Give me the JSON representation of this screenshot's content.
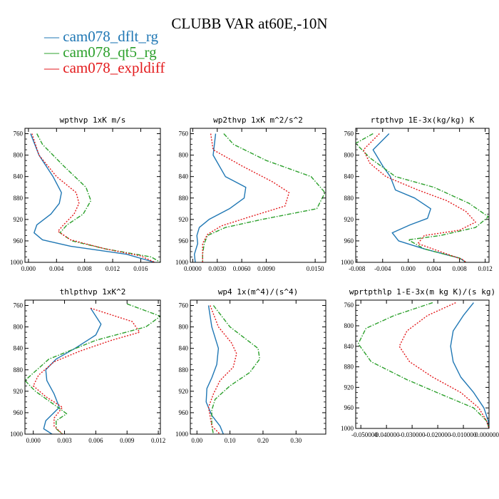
{
  "title": "CLUBB VAR at60E,-10N",
  "legend": [
    {
      "label": "cam078_dflt_rg",
      "color": "#1f77b4",
      "dash": "solid"
    },
    {
      "label": "cam078_qt5_rg",
      "color": "#2ca02c",
      "dash": "dashdot"
    },
    {
      "label": "cam078_expldiff",
      "color": "#e31a1c",
      "dash": "dotted"
    }
  ],
  "chart_data": [
    {
      "type": "line",
      "title": "wpthvp  1xK m/s",
      "xlim": [
        -0.0005,
        0.0188
      ],
      "ylim": [
        1000,
        750
      ],
      "xticks": [
        0.0,
        0.004,
        0.008,
        0.012,
        0.016
      ],
      "xtick_labels": [
        "0.000",
        "0.004",
        "0.008",
        "0.012",
        "0.016"
      ],
      "yticks": [
        760,
        800,
        840,
        880,
        920,
        960,
        1000
      ],
      "series": [
        {
          "name": "cam078_dflt_rg",
          "points": [
            [
              0.0003,
              760
            ],
            [
              0.0015,
              800
            ],
            [
              0.0035,
              840
            ],
            [
              0.0047,
              870
            ],
            [
              0.0044,
              890
            ],
            [
              0.0032,
              910
            ],
            [
              0.0012,
              930
            ],
            [
              0.0008,
              945
            ],
            [
              0.002,
              958
            ],
            [
              0.006,
              970
            ],
            [
              0.014,
              985
            ],
            [
              0.018,
              1000
            ]
          ]
        },
        {
          "name": "cam078_qt5_rg",
          "points": [
            [
              0.0012,
              760
            ],
            [
              0.002,
              780
            ],
            [
              0.005,
              820
            ],
            [
              0.0082,
              860
            ],
            [
              0.0089,
              885
            ],
            [
              0.0078,
              910
            ],
            [
              0.0055,
              930
            ],
            [
              0.0045,
              945
            ],
            [
              0.0062,
              960
            ],
            [
              0.011,
              975
            ],
            [
              0.0175,
              990
            ],
            [
              0.0188,
              1000
            ]
          ]
        },
        {
          "name": "cam078_expldiff",
          "points": [
            [
              0.0005,
              760
            ],
            [
              0.0015,
              800
            ],
            [
              0.004,
              840
            ],
            [
              0.0068,
              870
            ],
            [
              0.0072,
              890
            ],
            [
              0.0065,
              910
            ],
            [
              0.005,
              930
            ],
            [
              0.0042,
              942
            ],
            [
              0.006,
              958
            ],
            [
              0.011,
              975
            ],
            [
              0.016,
              988
            ],
            [
              0.018,
              1000
            ]
          ]
        }
      ]
    },
    {
      "type": "line",
      "title": "wp2thvp  1xK m^2/s^2",
      "xlim": [
        -0.0003,
        0.0163
      ],
      "ylim": [
        1000,
        750
      ],
      "xticks": [
        0.0,
        0.003,
        0.006,
        0.009,
        0.015
      ],
      "xtick_labels": [
        "0.0000",
        "0.0030",
        "0.0060",
        "0.0090",
        "0.0150"
      ],
      "yticks": [
        760,
        800,
        840,
        880,
        920,
        960,
        1000
      ],
      "series": [
        {
          "name": "cam078_dflt_rg",
          "points": [
            [
              0.0028,
              760
            ],
            [
              0.0025,
              800
            ],
            [
              0.004,
              840
            ],
            [
              0.0065,
              860
            ],
            [
              0.0063,
              880
            ],
            [
              0.0045,
              900
            ],
            [
              0.002,
              920
            ],
            [
              0.0008,
              935
            ],
            [
              0.0005,
              950
            ],
            [
              0.0006,
              965
            ],
            [
              0.0002,
              985
            ],
            [
              0.0003,
              1000
            ]
          ]
        },
        {
          "name": "cam078_qt5_rg",
          "points": [
            [
              0.0038,
              760
            ],
            [
              0.005,
              780
            ],
            [
              0.009,
              810
            ],
            [
              0.0145,
              840
            ],
            [
              0.0162,
              870
            ],
            [
              0.0152,
              900
            ],
            [
              0.0085,
              920
            ],
            [
              0.004,
              935
            ],
            [
              0.0018,
              950
            ],
            [
              0.0014,
              965
            ],
            [
              0.0012,
              985
            ],
            [
              0.0012,
              1000
            ]
          ]
        },
        {
          "name": "cam078_expldiff",
          "points": [
            [
              0.0022,
              760
            ],
            [
              0.0025,
              790
            ],
            [
              0.006,
              820
            ],
            [
              0.0098,
              850
            ],
            [
              0.0118,
              870
            ],
            [
              0.0113,
              895
            ],
            [
              0.007,
              915
            ],
            [
              0.0035,
              932
            ],
            [
              0.0018,
              948
            ],
            [
              0.0012,
              965
            ],
            [
              0.0012,
              985
            ],
            [
              0.0012,
              1000
            ]
          ]
        }
      ]
    },
    {
      "type": "line",
      "title": "rtpthvp  1E-3x(kg/kg) K",
      "xlim": [
        -0.0082,
        0.0126
      ],
      "ylim": [
        1000,
        750
      ],
      "xticks": [
        -0.008,
        -0.004,
        0.0,
        0.004,
        0.008,
        0.012
      ],
      "xtick_labels": [
        "-0.008",
        "-0.004",
        "0.000",
        "0.004",
        "0.008",
        "0.012"
      ],
      "yticks": [
        760,
        800,
        840,
        880,
        920,
        960,
        1000
      ],
      "series": [
        {
          "name": "cam078_dflt_rg",
          "points": [
            [
              -0.003,
              760
            ],
            [
              -0.0055,
              790
            ],
            [
              -0.004,
              820
            ],
            [
              -0.0028,
              840
            ],
            [
              -0.002,
              865
            ],
            [
              0.001,
              880
            ],
            [
              0.0035,
              900
            ],
            [
              0.003,
              918
            ],
            [
              0.0003,
              930
            ],
            [
              -0.0025,
              945
            ],
            [
              -0.0015,
              960
            ],
            [
              0.0025,
              975
            ],
            [
              0.008,
              992
            ],
            [
              0.009,
              1000
            ]
          ]
        },
        {
          "name": "cam078_qt5_rg",
          "points": [
            [
              -0.0055,
              760
            ],
            [
              -0.0082,
              778
            ],
            [
              -0.006,
              805
            ],
            [
              -0.002,
              840
            ],
            [
              0.004,
              860
            ],
            [
              0.0095,
              890
            ],
            [
              0.0125,
              915
            ],
            [
              0.0105,
              935
            ],
            [
              0.005,
              950
            ],
            [
              0.0,
              958
            ],
            [
              0.0025,
              975
            ],
            [
              0.008,
              992
            ],
            [
              0.009,
              1000
            ]
          ]
        },
        {
          "name": "cam078_expldiff",
          "points": [
            [
              -0.0045,
              760
            ],
            [
              -0.007,
              790
            ],
            [
              -0.006,
              815
            ],
            [
              -0.0035,
              840
            ],
            [
              0.0015,
              865
            ],
            [
              0.006,
              885
            ],
            [
              0.009,
              905
            ],
            [
              0.0105,
              925
            ],
            [
              0.008,
              940
            ],
            [
              0.0025,
              950
            ],
            [
              0.0015,
              965
            ],
            [
              0.005,
              980
            ],
            [
              0.0085,
              995
            ],
            [
              0.009,
              1000
            ]
          ]
        }
      ]
    },
    {
      "type": "line",
      "title": "thlpthvp  1xK^2",
      "xlim": [
        -0.0008,
        0.0122
      ],
      "ylim": [
        1000,
        750
      ],
      "xticks": [
        0.0,
        0.003,
        0.006,
        0.009,
        0.012
      ],
      "xtick_labels": [
        "0.000",
        "0.003",
        "0.006",
        "0.009",
        "0.012"
      ],
      "yticks": [
        760,
        800,
        840,
        880,
        920,
        960,
        1000
      ],
      "series": [
        {
          "name": "cam078_dflt_rg",
          "points": [
            [
              0.0055,
              765
            ],
            [
              0.0065,
              795
            ],
            [
              0.006,
              815
            ],
            [
              0.004,
              840
            ],
            [
              0.0022,
              860
            ],
            [
              0.0012,
              880
            ],
            [
              0.0013,
              900
            ],
            [
              0.002,
              925
            ],
            [
              0.0025,
              950
            ],
            [
              0.0012,
              975
            ],
            [
              0.001,
              990
            ],
            [
              0.0018,
              1000
            ]
          ]
        },
        {
          "name": "cam078_qt5_rg",
          "points": [
            [
              0.009,
              757
            ],
            [
              0.0122,
              780
            ],
            [
              0.0108,
              800
            ],
            [
              0.006,
              825
            ],
            [
              0.0015,
              860
            ],
            [
              -0.0008,
              900
            ],
            [
              0.0002,
              920
            ],
            [
              0.002,
              945
            ],
            [
              0.0032,
              962
            ],
            [
              0.0022,
              975
            ],
            [
              0.0022,
              990
            ],
            [
              0.0028,
              1000
            ]
          ]
        },
        {
          "name": "cam078_expldiff",
          "points": [
            [
              0.0055,
              765
            ],
            [
              0.0095,
              790
            ],
            [
              0.0102,
              810
            ],
            [
              0.0075,
              825
            ],
            [
              0.0045,
              845
            ],
            [
              0.002,
              865
            ],
            [
              0.0005,
              890
            ],
            [
              0.0,
              910
            ],
            [
              0.0012,
              930
            ],
            [
              0.0028,
              950
            ],
            [
              0.002,
              970
            ],
            [
              0.002,
              985
            ],
            [
              0.0028,
              1000
            ]
          ]
        }
      ]
    },
    {
      "type": "line",
      "title": "wp4  1x(m^4)/(s^4)",
      "xlim": [
        -0.02,
        0.39
      ],
      "ylim": [
        1000,
        750
      ],
      "xticks": [
        0.0,
        0.1,
        0.2,
        0.3
      ],
      "xtick_labels": [
        "0.00",
        "0.10",
        "0.20",
        "0.30"
      ],
      "yticks": [
        760,
        800,
        840,
        880,
        920,
        960,
        1000
      ],
      "series": [
        {
          "name": "cam078_dflt_rg",
          "points": [
            [
              0.035,
              760
            ],
            [
              0.045,
              800
            ],
            [
              0.065,
              840
            ],
            [
              0.06,
              870
            ],
            [
              0.045,
              895
            ],
            [
              0.03,
              915
            ],
            [
              0.028,
              940
            ],
            [
              0.045,
              965
            ],
            [
              0.07,
              985
            ],
            [
              0.08,
              1000
            ]
          ]
        },
        {
          "name": "cam078_qt5_rg",
          "points": [
            [
              0.05,
              760
            ],
            [
              0.1,
              800
            ],
            [
              0.185,
              840
            ],
            [
              0.19,
              860
            ],
            [
              0.16,
              885
            ],
            [
              0.1,
              910
            ],
            [
              0.055,
              935
            ],
            [
              0.045,
              955
            ],
            [
              0.045,
              985
            ],
            [
              0.05,
              1000
            ]
          ]
        },
        {
          "name": "cam078_expldiff",
          "points": [
            [
              0.04,
              760
            ],
            [
              0.065,
              800
            ],
            [
              0.105,
              830
            ],
            [
              0.12,
              850
            ],
            [
              0.11,
              875
            ],
            [
              0.07,
              900
            ],
            [
              0.05,
              925
            ],
            [
              0.035,
              950
            ],
            [
              0.045,
              985
            ],
            [
              0.07,
              1000
            ]
          ]
        }
      ]
    },
    {
      "type": "line",
      "title": "wprtpthlp  1-E-3x(m kg K)/(s kg)",
      "xlim": [
        -0.052,
        0.0
      ],
      "ylim": [
        1000,
        750
      ],
      "xticks": [
        -0.05,
        -0.04,
        -0.03,
        -0.02,
        -0.01,
        0.0
      ],
      "xtick_labels": [
        "-0.050000",
        "-0.040000",
        "-0.030000",
        "-0.020000",
        "-0.010000",
        "0.000000"
      ],
      "yticks": [
        760,
        800,
        840,
        880,
        920,
        960,
        1000
      ],
      "series": [
        {
          "name": "cam078_dflt_rg",
          "points": [
            [
              -0.006,
              755
            ],
            [
              -0.01,
              780
            ],
            [
              -0.014,
              810
            ],
            [
              -0.015,
              840
            ],
            [
              -0.014,
              870
            ],
            [
              -0.011,
              900
            ],
            [
              -0.006,
              930
            ],
            [
              -0.002,
              960
            ],
            [
              -0.0003,
              985
            ],
            [
              0.0,
              1000
            ]
          ]
        },
        {
          "name": "cam078_qt5_rg",
          "points": [
            [
              -0.022,
              755
            ],
            [
              -0.037,
              780
            ],
            [
              -0.048,
              805
            ],
            [
              -0.051,
              835
            ],
            [
              -0.046,
              870
            ],
            [
              -0.032,
              905
            ],
            [
              -0.018,
              935
            ],
            [
              -0.006,
              960
            ],
            [
              -0.001,
              985
            ],
            [
              0.0,
              1000
            ]
          ]
        },
        {
          "name": "cam078_expldiff",
          "points": [
            [
              -0.013,
              755
            ],
            [
              -0.024,
              780
            ],
            [
              -0.032,
              810
            ],
            [
              -0.035,
              840
            ],
            [
              -0.031,
              870
            ],
            [
              -0.022,
              900
            ],
            [
              -0.011,
              930
            ],
            [
              -0.004,
              960
            ],
            [
              -0.001,
              985
            ],
            [
              0.0,
              1000
            ]
          ]
        }
      ]
    }
  ]
}
